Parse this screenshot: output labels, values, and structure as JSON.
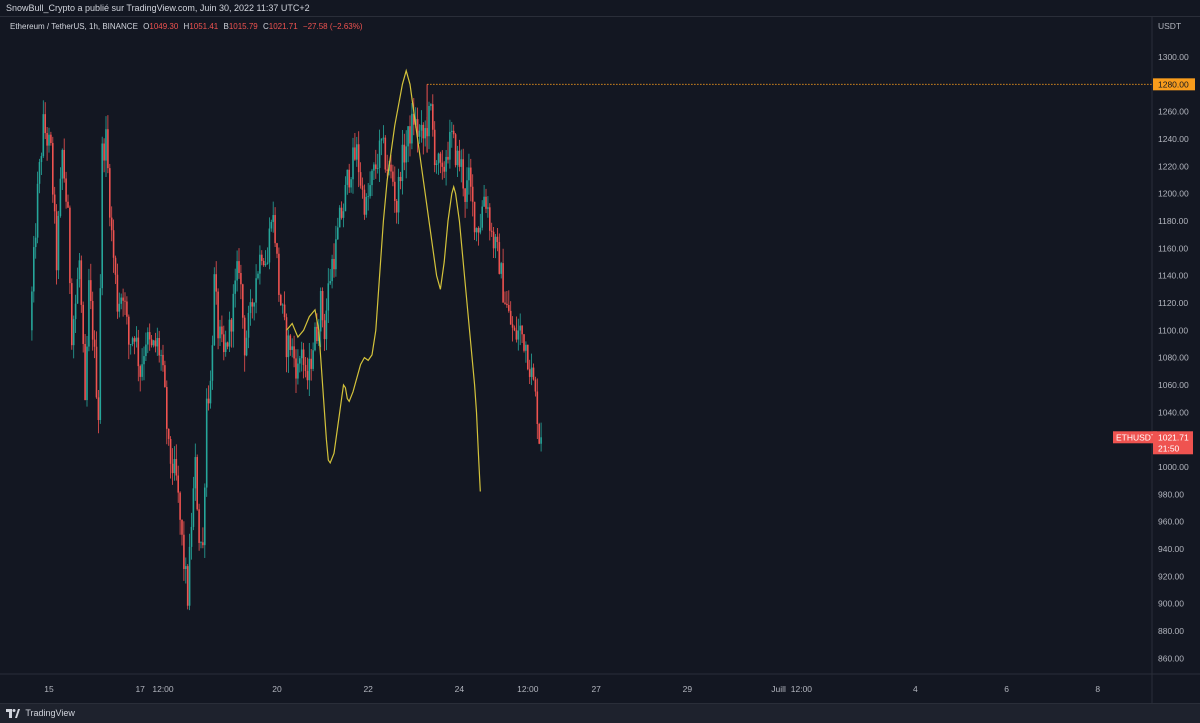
{
  "header": {
    "text": "SnowBull_Crypto a publié sur TradingView.com, Juin 30, 2022 11:37 UTC+2"
  },
  "legend": {
    "title": "Ethereum / TetherUS, 1h, BINANCE",
    "o_label": "O",
    "o_value": "1049.30",
    "h_label": "H",
    "h_value": "1051.41",
    "b_label": "B",
    "b_value": "1015.79",
    "c_label": "C",
    "c_value": "1021.71",
    "change": "−27.58 (−2.63%)"
  },
  "currency": "USDT",
  "colors": {
    "up": "#26a69a",
    "down": "#ef5350",
    "drawing": "#d4c33b",
    "level": "#f89c1c",
    "bg": "#131722"
  },
  "footer": {
    "brand": "TradingView",
    "icon": "tradingview-logo-icon"
  },
  "price_label": {
    "symbol": "ETHUSDT",
    "price": "1021.71",
    "countdown": "21:50"
  },
  "level_label": "1280.00",
  "chart_data": {
    "type": "candlestick",
    "symbol": "ETHUSDT",
    "interval": "1h",
    "ylim": [
      845,
      1315
    ],
    "y_ticks": [
      860,
      880,
      900,
      920,
      940,
      960,
      980,
      1000,
      1020,
      1040,
      1060,
      1080,
      1100,
      1120,
      1140,
      1160,
      1180,
      1200,
      1220,
      1240,
      1260,
      1280,
      1300
    ],
    "y_tick_labels": [
      "860.00",
      "880.00",
      "900.00",
      "920.00",
      "940.00",
      "960.00",
      "980.00",
      "1000.00",
      "1020.00",
      "1040.00",
      "1060.00",
      "1080.00",
      "1100.00",
      "1120.00",
      "1140.00",
      "1160.00",
      "1180.00",
      "1200.00",
      "1220.00",
      "1240.00",
      "1260.00",
      "1280.00",
      "1300.00"
    ],
    "x_ticks": [
      {
        "label": "15",
        "t": 0
      },
      {
        "label": "17",
        "t": 48
      },
      {
        "label": "12:00",
        "t": 60
      },
      {
        "label": "20",
        "t": 120
      },
      {
        "label": "22",
        "t": 168
      },
      {
        "label": "24",
        "t": 216
      },
      {
        "label": "12:00",
        "t": 252
      },
      {
        "label": "27",
        "t": 288
      },
      {
        "label": "29",
        "t": 336
      },
      {
        "label": "Juill",
        "t": 384
      },
      {
        "label": "12:00",
        "t": 396
      },
      {
        "label": "4",
        "t": 456
      },
      {
        "label": "6",
        "t": 504
      },
      {
        "label": "8",
        "t": 552
      }
    ],
    "price_path": [
      [
        -9,
        1100
      ],
      [
        -5,
        1200
      ],
      [
        -2,
        1250
      ],
      [
        2,
        1230
      ],
      [
        5,
        1150
      ],
      [
        8,
        1230
      ],
      [
        11,
        1180
      ],
      [
        13,
        1100
      ],
      [
        15,
        1120
      ],
      [
        17,
        1150
      ],
      [
        19,
        1080
      ],
      [
        20,
        1040
      ],
      [
        22,
        1130
      ],
      [
        24,
        1100
      ],
      [
        27,
        1040
      ],
      [
        29,
        1230
      ],
      [
        31,
        1240
      ],
      [
        34,
        1170
      ],
      [
        37,
        1120
      ],
      [
        40,
        1130
      ],
      [
        43,
        1090
      ],
      [
        46,
        1100
      ],
      [
        49,
        1070
      ],
      [
        52,
        1095
      ],
      [
        55,
        1085
      ],
      [
        58,
        1090
      ],
      [
        60,
        1080
      ],
      [
        62,
        1050
      ],
      [
        64,
        1010
      ],
      [
        66,
        1000
      ],
      [
        68,
        990
      ],
      [
        70,
        960
      ],
      [
        72,
        930
      ],
      [
        74,
        905
      ],
      [
        76,
        960
      ],
      [
        78,
        1000
      ],
      [
        80,
        950
      ],
      [
        82,
        940
      ],
      [
        84,
        1050
      ],
      [
        86,
        1060
      ],
      [
        88,
        1135
      ],
      [
        90,
        1100
      ],
      [
        93,
        1080
      ],
      [
        96,
        1100
      ],
      [
        99,
        1130
      ],
      [
        101,
        1150
      ],
      [
        104,
        1090
      ],
      [
        107,
        1110
      ],
      [
        110,
        1140
      ],
      [
        113,
        1160
      ],
      [
        116,
        1150
      ],
      [
        118,
        1190
      ],
      [
        120,
        1170
      ],
      [
        122,
        1130
      ],
      [
        124,
        1110
      ],
      [
        126,
        1090
      ],
      [
        128,
        1090
      ],
      [
        130,
        1080
      ],
      [
        132,
        1070
      ],
      [
        134,
        1090
      ],
      [
        136,
        1060
      ],
      [
        138,
        1070
      ],
      [
        140,
        1090
      ],
      [
        142,
        1100
      ],
      [
        144,
        1120
      ],
      [
        146,
        1100
      ],
      [
        148,
        1130
      ],
      [
        150,
        1150
      ],
      [
        152,
        1160
      ],
      [
        154,
        1180
      ],
      [
        156,
        1190
      ],
      [
        158,
        1210
      ],
      [
        160,
        1220
      ],
      [
        163,
        1230
      ],
      [
        166,
        1200
      ],
      [
        168,
        1190
      ],
      [
        171,
        1210
      ],
      [
        174,
        1225
      ],
      [
        176,
        1235
      ],
      [
        179,
        1220
      ],
      [
        182,
        1210
      ],
      [
        184,
        1190
      ],
      [
        186,
        1220
      ],
      [
        188,
        1230
      ],
      [
        190,
        1240
      ],
      [
        193,
        1255
      ],
      [
        195,
        1245
      ],
      [
        198,
        1240
      ],
      [
        200,
        1250
      ],
      [
        202,
        1260
      ],
      [
        204,
        1230
      ],
      [
        206,
        1220
      ],
      [
        208,
        1210
      ],
      [
        210,
        1230
      ],
      [
        213,
        1240
      ],
      [
        216,
        1225
      ],
      [
        218,
        1220
      ],
      [
        220,
        1200
      ],
      [
        222,
        1210
      ],
      [
        224,
        1190
      ],
      [
        226,
        1175
      ],
      [
        228,
        1180
      ],
      [
        230,
        1200
      ],
      [
        232,
        1190
      ],
      [
        234,
        1170
      ],
      [
        236,
        1160
      ],
      [
        238,
        1150
      ],
      [
        240,
        1130
      ],
      [
        243,
        1110
      ],
      [
        246,
        1095
      ],
      [
        249,
        1100
      ],
      [
        252,
        1090
      ],
      [
        254,
        1075
      ],
      [
        256,
        1060
      ],
      [
        258,
        1040
      ],
      [
        259,
        1022
      ]
    ],
    "drawing_path": [
      [
        125,
        1100
      ],
      [
        128,
        1105
      ],
      [
        131,
        1095
      ],
      [
        134,
        1100
      ],
      [
        137,
        1110
      ],
      [
        140,
        1115
      ],
      [
        142,
        1100
      ],
      [
        143,
        1080
      ],
      [
        144,
        1060
      ],
      [
        145,
        1040
      ],
      [
        146,
        1020
      ],
      [
        147,
        1005
      ],
      [
        148,
        1003
      ],
      [
        150,
        1010
      ],
      [
        152,
        1030
      ],
      [
        154,
        1050
      ],
      [
        155,
        1060
      ],
      [
        156,
        1058
      ],
      [
        157,
        1050
      ],
      [
        158,
        1048
      ],
      [
        160,
        1055
      ],
      [
        162,
        1065
      ],
      [
        164,
        1075
      ],
      [
        166,
        1080
      ],
      [
        168,
        1078
      ],
      [
        170,
        1082
      ],
      [
        172,
        1100
      ],
      [
        174,
        1140
      ],
      [
        176,
        1180
      ],
      [
        178,
        1210
      ],
      [
        180,
        1230
      ],
      [
        182,
        1250
      ],
      [
        184,
        1265
      ],
      [
        186,
        1280
      ],
      [
        188,
        1290
      ],
      [
        190,
        1280
      ],
      [
        192,
        1260
      ],
      [
        194,
        1240
      ],
      [
        196,
        1220
      ],
      [
        198,
        1200
      ],
      [
        200,
        1180
      ],
      [
        202,
        1160
      ],
      [
        204,
        1140
      ],
      [
        206,
        1130
      ],
      [
        208,
        1150
      ],
      [
        210,
        1180
      ],
      [
        212,
        1200
      ],
      [
        213,
        1205
      ],
      [
        214,
        1200
      ],
      [
        216,
        1180
      ],
      [
        218,
        1150
      ],
      [
        220,
        1120
      ],
      [
        222,
        1090
      ],
      [
        224,
        1060
      ],
      [
        225,
        1040
      ],
      [
        226,
        1010
      ],
      [
        227,
        982
      ]
    ],
    "level_line": {
      "value": 1280,
      "start_t": 199
    }
  }
}
